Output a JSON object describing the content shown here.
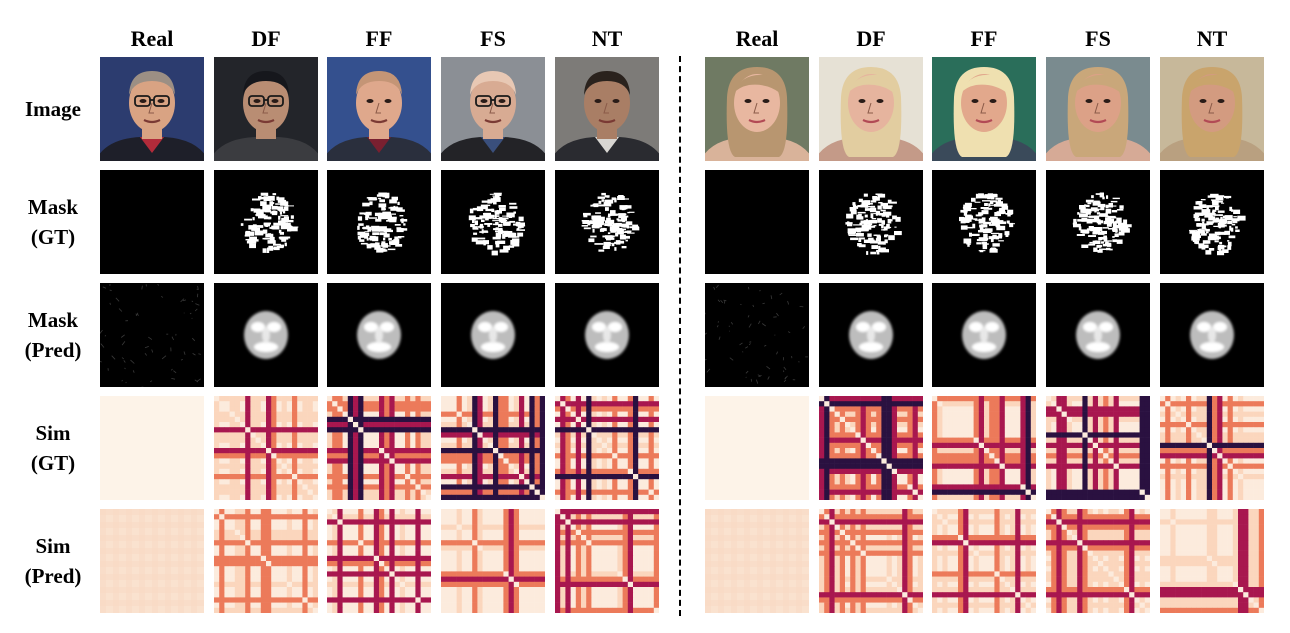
{
  "columns": [
    {
      "label": "Real",
      "kind": "real",
      "face": {
        "skin": "#d9a383",
        "hair": "#9c8f84",
        "bg": "#2c3c6f",
        "cloth": "#1e1f29",
        "glasses": true,
        "collar": "#b22b3a"
      }
    },
    {
      "label": "DF",
      "kind": "fake",
      "face": {
        "skin": "#b98d73",
        "hair": "#16171c",
        "bg": "#23252a",
        "cloth": "#3b3c40",
        "glasses": true,
        "collar": "#3b3c40"
      }
    },
    {
      "label": "FF",
      "kind": "fake",
      "face": {
        "skin": "#dfa88c",
        "hair": "#c49576",
        "bg": "#34508e",
        "cloth": "#2a2f3d",
        "glasses": false,
        "collar": "#7a2030"
      }
    },
    {
      "label": "FS",
      "kind": "fake",
      "face": {
        "skin": "#d8ab93",
        "hair": "#e8c8b4",
        "bg": "#8b8f95",
        "cloth": "#232327",
        "glasses": true,
        "collar": "#3a4f7c"
      }
    },
    {
      "label": "NT",
      "kind": "fake",
      "face": {
        "skin": "#a97e65",
        "hair": "#2a221d",
        "bg": "#7d7b78",
        "cloth": "#2a2b30",
        "glasses": false,
        "collar": "#d8d6d2"
      }
    },
    {
      "label": "Real",
      "kind": "real",
      "face": {
        "skin": "#e8b7a0",
        "hair": "#b89670",
        "bg": "#6f7a63",
        "cloth": "#d9b39a",
        "glasses": false,
        "collar": "#d9b39a"
      }
    },
    {
      "label": "DF",
      "kind": "fake",
      "face": {
        "skin": "#e6b49e",
        "hair": "#e2cda0",
        "bg": "#e6e1d5",
        "cloth": "#c49a88",
        "glasses": false,
        "collar": "#c49a88"
      }
    },
    {
      "label": "FF",
      "kind": "fake",
      "face": {
        "skin": "#e2a88c",
        "hair": "#efe0b0",
        "bg": "#2a6e5a",
        "cloth": "#3a4a5a",
        "glasses": false,
        "collar": "#3a4a5a"
      }
    },
    {
      "label": "FS",
      "kind": "fake",
      "face": {
        "skin": "#dca187",
        "hair": "#c9a77a",
        "bg": "#7a8b8f",
        "cloth": "#d6aa96",
        "glasses": false,
        "collar": "#3f9a8a"
      }
    },
    {
      "label": "NT",
      "kind": "fake",
      "face": {
        "skin": "#d39b80",
        "hair": "#c9a46c",
        "bg": "#c7b89a",
        "cloth": "#b9a080",
        "glasses": false,
        "collar": "#b9a080"
      }
    }
  ],
  "rows": [
    {
      "id": "image",
      "label_lines": [
        "Image"
      ]
    },
    {
      "id": "mask_gt",
      "label_lines": [
        "Mask",
        "(GT)"
      ]
    },
    {
      "id": "mask_pred",
      "label_lines": [
        "Mask",
        "(Pred)"
      ]
    },
    {
      "id": "sim_gt",
      "label_lines": [
        "Sim",
        "(GT)"
      ]
    },
    {
      "id": "sim_pred",
      "label_lines": [
        "Sim",
        "(Pred)"
      ]
    }
  ],
  "colors": {
    "sim_dark": "#2a1140",
    "sim_mid": "#a8174f",
    "sim_orange": "#ec7a5a",
    "sim_light": "#fbd6bd",
    "sim_base": "#fcebdd",
    "real_sim": "#fdf3e8",
    "mask_bg": "#000000",
    "mask_fg": "#ffffff"
  }
}
